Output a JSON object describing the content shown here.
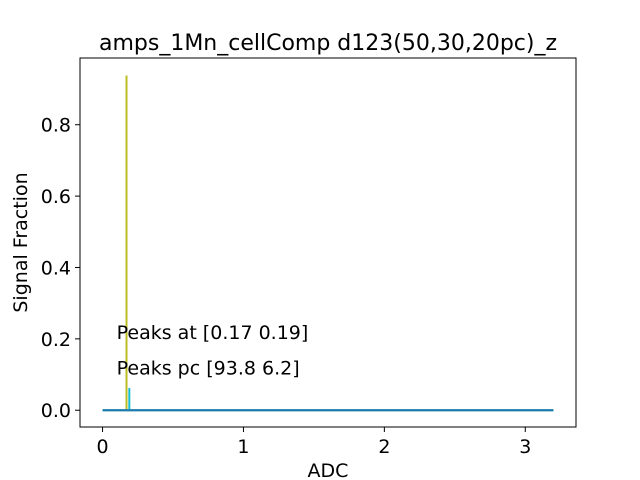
{
  "chart_data": {
    "type": "line",
    "title": "amps_1Mn_cellComp d123(50,30,20pc)_z",
    "xlabel": "ADC",
    "ylabel": "Signal Fraction",
    "xlim": [
      -0.16,
      3.36
    ],
    "ylim": [
      -0.047,
      0.987
    ],
    "xticks": [
      0,
      1,
      2,
      3
    ],
    "xtick_labels": [
      "0",
      "1",
      "2",
      "3"
    ],
    "yticks": [
      0.0,
      0.2,
      0.4,
      0.6,
      0.8
    ],
    "ytick_labels": [
      "0.0",
      "0.2",
      "0.4",
      "0.6",
      "0.8"
    ],
    "grid": false,
    "legend": "none",
    "series": [
      {
        "color": "#bcbd22",
        "x": [
          0.0,
          0.17,
          0.17,
          0.17,
          3.2
        ],
        "y": [
          0.0,
          0.0,
          0.938,
          0.0,
          0.0
        ]
      },
      {
        "color": "#17becf",
        "x": [
          0.0,
          0.19,
          0.19,
          0.19,
          3.2
        ],
        "y": [
          0.0,
          0.0,
          0.062,
          0.0,
          0.0
        ]
      },
      {
        "color": "#1f77b4",
        "x": [
          0.0,
          3.2
        ],
        "y": [
          0.0,
          0.0
        ]
      }
    ],
    "annotations": [
      {
        "text": "Peaks at [0.17 0.19]",
        "x": 0.1,
        "y": 0.2
      },
      {
        "text": "Peaks pc [93.8  6.2]",
        "x": 0.1,
        "y": 0.1
      }
    ]
  }
}
